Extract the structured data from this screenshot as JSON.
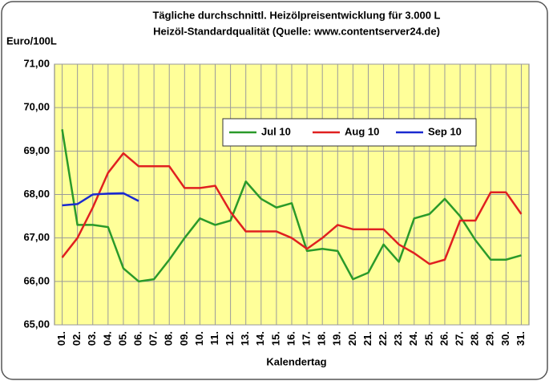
{
  "chart_data": {
    "type": "line",
    "title": "Tägliche durchschnittl. Heizölpreisentwicklung für 3.000 L",
    "subtitle": "Heizöl-Standardqualität (Quelle: www.contentserver24.de)",
    "y_label": "Euro/100L",
    "x_label": "Kalendertag",
    "categories": [
      "01.",
      "02.",
      "03.",
      "04.",
      "05.",
      "06.",
      "07.",
      "08.",
      "09.",
      "10.",
      "11.",
      "12.",
      "13.",
      "14.",
      "15.",
      "16.",
      "17.",
      "18.",
      "19.",
      "20.",
      "21.",
      "22.",
      "23.",
      "24.",
      "25.",
      "26.",
      "27.",
      "28.",
      "29.",
      "30.",
      "31."
    ],
    "series": [
      {
        "name": "Jul 10",
        "color": "#2a9a2a",
        "values": [
          69.5,
          67.3,
          67.3,
          67.25,
          66.3,
          66.0,
          66.05,
          66.5,
          67.0,
          67.45,
          67.3,
          67.4,
          68.3,
          67.9,
          67.7,
          67.8,
          66.7,
          66.75,
          66.7,
          66.05,
          66.2,
          66.85,
          66.45,
          67.45,
          67.55,
          67.9,
          67.5,
          66.95,
          66.5,
          66.5,
          66.6
        ]
      },
      {
        "name": "Aug 10",
        "color": "#e02020",
        "values": [
          66.55,
          67.0,
          67.7,
          68.5,
          68.95,
          68.65,
          68.65,
          68.65,
          68.15,
          68.15,
          68.2,
          67.6,
          67.15,
          67.15,
          67.15,
          67.0,
          66.75,
          67.0,
          67.3,
          67.2,
          67.2,
          67.2,
          66.85,
          66.65,
          66.4,
          66.5,
          67.4,
          67.4,
          68.05,
          68.05,
          67.55
        ]
      },
      {
        "name": "Sep 10",
        "color": "#1a2ad0",
        "values": [
          67.75,
          67.78,
          68.0,
          68.02,
          68.03,
          67.85,
          null,
          null,
          null,
          null,
          null,
          null,
          null,
          null,
          null,
          null,
          null,
          null,
          null,
          null,
          null,
          null,
          null,
          null,
          null,
          null,
          null,
          null,
          null,
          null,
          null
        ]
      }
    ],
    "ylim": [
      65,
      71
    ],
    "yticks": [
      {
        "value": 65,
        "label": "65,00"
      },
      {
        "value": 66,
        "label": "66,00"
      },
      {
        "value": 67,
        "label": "67,00"
      },
      {
        "value": 68,
        "label": "68,00"
      },
      {
        "value": 69,
        "label": "69,00"
      },
      {
        "value": 70,
        "label": "70,00"
      },
      {
        "value": 71,
        "label": "71,00"
      }
    ],
    "grid": true,
    "legend_position": "top-right"
  }
}
